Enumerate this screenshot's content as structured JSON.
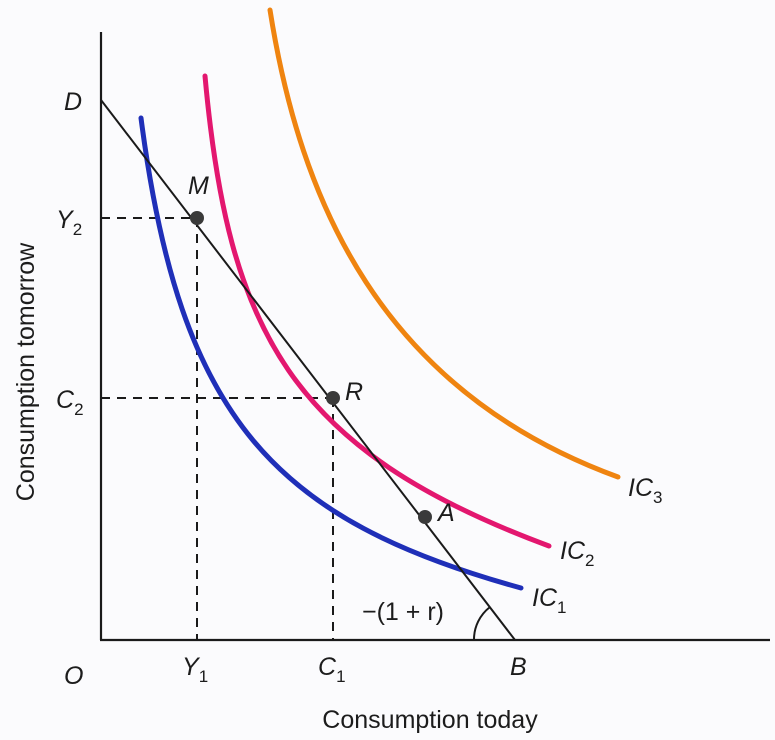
{
  "diagram": {
    "x_axis_title": "Consumption today",
    "y_axis_title": "Consumption tomorrow",
    "origin_label": "O",
    "y_axis_marks": {
      "D": "D",
      "Y2_main": "Y",
      "Y2_sub": "2",
      "C2_main": "C",
      "C2_sub": "2"
    },
    "x_axis_marks": {
      "Y1_main": "Y",
      "Y1_sub": "1",
      "C1_main": "C",
      "C1_sub": "1",
      "B": "B"
    },
    "points": {
      "M": "M",
      "R": "R",
      "A": "A"
    },
    "curves": {
      "ic1_main": "IC",
      "ic1_sub": "1",
      "ic2_main": "IC",
      "ic2_sub": "2",
      "ic3_main": "IC",
      "ic3_sub": "3"
    },
    "slope_label": "−(1 + r)",
    "colors": {
      "ic1": "#1f2fb8",
      "ic2": "#e3176f",
      "ic3": "#ef8410",
      "budget_line": "#1a1a1a",
      "axes": "#1a1a1a",
      "point": "#3a3a3a"
    }
  }
}
